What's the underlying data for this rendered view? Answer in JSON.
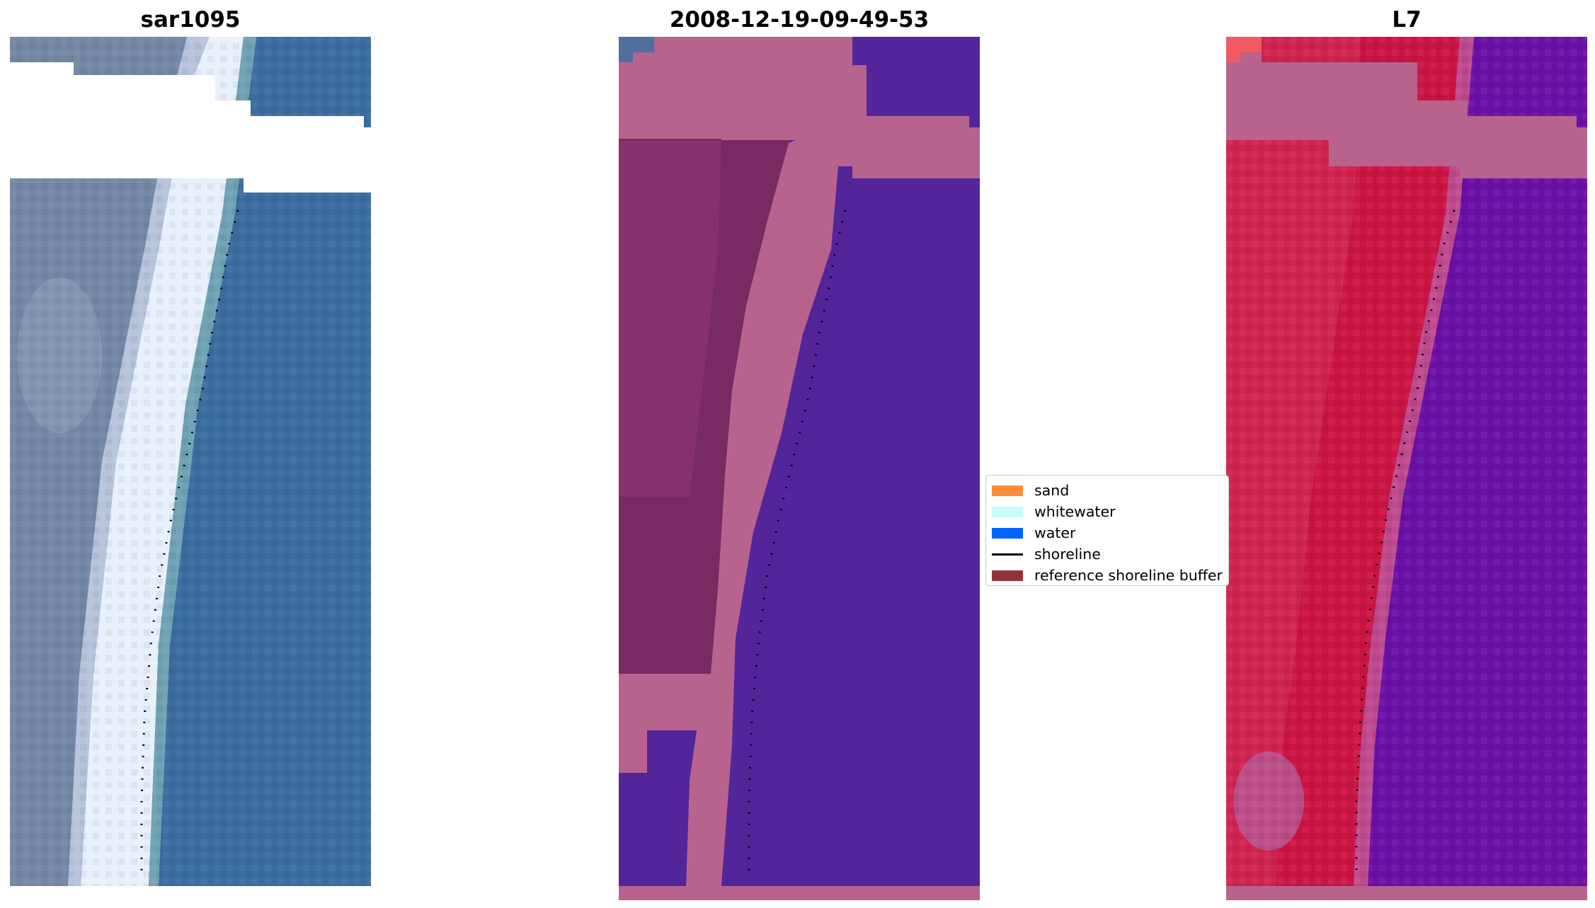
{
  "panels": [
    {
      "title": "sar1095",
      "image": "satellite-rgb-image"
    },
    {
      "title": "2008-12-19-09-49-53",
      "image": "classified-image"
    },
    {
      "title": "L7",
      "image": "mndwi-image"
    }
  ],
  "legend": [
    {
      "label": "sand",
      "kind": "patch",
      "color": "#ff8c3a"
    },
    {
      "label": "whitewater",
      "kind": "patch",
      "color": "#c8fffa"
    },
    {
      "label": "water",
      "kind": "patch",
      "color": "#0064ff"
    },
    {
      "label": "shoreline",
      "kind": "line",
      "color": "#000000"
    },
    {
      "label": "reference shoreline buffer",
      "kind": "patch",
      "color": "#923437"
    }
  ],
  "colors": {
    "rgb_water": "#3a6ea0",
    "rgb_land": "#6f86a6",
    "rgb_whitewater": "#eef6ff",
    "class_buffer": "#b8628e",
    "class_land": "#7a2a62",
    "class_water": "#52259a",
    "mndwi_land": "#cc1444",
    "mndwi_water": "#6a10a8"
  }
}
